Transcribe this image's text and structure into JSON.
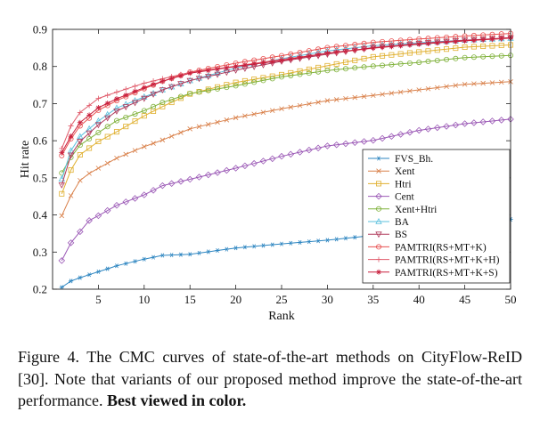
{
  "chart_data": {
    "type": "line",
    "xlabel": "Rank",
    "ylabel": "Hit rate",
    "xlim": [
      0,
      50
    ],
    "ylim": [
      0.2,
      0.9
    ],
    "xticks": [
      5,
      10,
      15,
      20,
      25,
      30,
      35,
      40,
      45,
      50
    ],
    "yticks": [
      0.2,
      0.3,
      0.4,
      0.5,
      0.6,
      0.7,
      0.8,
      0.9
    ],
    "ytick_labels": [
      "0.2",
      "0.3",
      "0.4",
      "0.5",
      "0.6",
      "0.7",
      "0.8",
      "0.9"
    ],
    "legend_position": "lower-right",
    "series": [
      {
        "name": "FVS_Bh.",
        "color": "#2e86c1",
        "marker": "asterisk",
        "anchors": [
          [
            1,
            0.205
          ],
          [
            2,
            0.222
          ],
          [
            3,
            0.231
          ],
          [
            5,
            0.247
          ],
          [
            7,
            0.263
          ],
          [
            10,
            0.281
          ],
          [
            12,
            0.291
          ],
          [
            15,
            0.294
          ],
          [
            20,
            0.311
          ],
          [
            25,
            0.322
          ],
          [
            30,
            0.332
          ],
          [
            35,
            0.345
          ],
          [
            40,
            0.357
          ],
          [
            45,
            0.371
          ],
          [
            50,
            0.388
          ]
        ]
      },
      {
        "name": "Xent",
        "color": "#d9804a",
        "marker": "x",
        "anchors": [
          [
            1,
            0.398
          ],
          [
            2,
            0.452
          ],
          [
            3,
            0.493
          ],
          [
            4,
            0.512
          ],
          [
            5,
            0.526
          ],
          [
            7,
            0.553
          ],
          [
            10,
            0.584
          ],
          [
            12,
            0.602
          ],
          [
            15,
            0.632
          ],
          [
            20,
            0.662
          ],
          [
            25,
            0.686
          ],
          [
            30,
            0.708
          ],
          [
            35,
            0.722
          ],
          [
            40,
            0.737
          ],
          [
            45,
            0.752
          ],
          [
            50,
            0.759
          ]
        ]
      },
      {
        "name": "Htri",
        "color": "#e0b030",
        "marker": "square",
        "anchors": [
          [
            1,
            0.457
          ],
          [
            2,
            0.521
          ],
          [
            3,
            0.562
          ],
          [
            5,
            0.598
          ],
          [
            7,
            0.624
          ],
          [
            10,
            0.667
          ],
          [
            12,
            0.692
          ],
          [
            15,
            0.726
          ],
          [
            20,
            0.757
          ],
          [
            25,
            0.778
          ],
          [
            30,
            0.802
          ],
          [
            35,
            0.826
          ],
          [
            40,
            0.839
          ],
          [
            45,
            0.852
          ],
          [
            50,
            0.858
          ]
        ]
      },
      {
        "name": "Cent",
        "color": "#9b59b6",
        "marker": "diamond",
        "anchors": [
          [
            1,
            0.277
          ],
          [
            2,
            0.325
          ],
          [
            3,
            0.355
          ],
          [
            4,
            0.385
          ],
          [
            5,
            0.398
          ],
          [
            7,
            0.426
          ],
          [
            10,
            0.454
          ],
          [
            12,
            0.479
          ],
          [
            15,
            0.496
          ],
          [
            20,
            0.526
          ],
          [
            25,
            0.558
          ],
          [
            30,
            0.586
          ],
          [
            35,
            0.601
          ],
          [
            40,
            0.628
          ],
          [
            45,
            0.646
          ],
          [
            50,
            0.658
          ]
        ]
      },
      {
        "name": "Xent+Htri",
        "color": "#7fb13a",
        "marker": "circle",
        "anchors": [
          [
            1,
            0.513
          ],
          [
            2,
            0.555
          ],
          [
            3,
            0.588
          ],
          [
            5,
            0.622
          ],
          [
            7,
            0.654
          ],
          [
            10,
            0.681
          ],
          [
            12,
            0.703
          ],
          [
            15,
            0.727
          ],
          [
            20,
            0.748
          ],
          [
            25,
            0.772
          ],
          [
            30,
            0.789
          ],
          [
            35,
            0.801
          ],
          [
            40,
            0.811
          ],
          [
            45,
            0.824
          ],
          [
            50,
            0.83
          ]
        ]
      },
      {
        "name": "BA",
        "color": "#5bc0de",
        "marker": "triangle-up",
        "anchors": [
          [
            1,
            0.497
          ],
          [
            2,
            0.573
          ],
          [
            3,
            0.611
          ],
          [
            5,
            0.653
          ],
          [
            7,
            0.688
          ],
          [
            10,
            0.718
          ],
          [
            12,
            0.737
          ],
          [
            15,
            0.762
          ],
          [
            20,
            0.796
          ],
          [
            25,
            0.821
          ],
          [
            30,
            0.842
          ],
          [
            35,
            0.856
          ],
          [
            40,
            0.864
          ],
          [
            45,
            0.871
          ],
          [
            50,
            0.876
          ]
        ]
      },
      {
        "name": "BS",
        "color": "#b03a5b",
        "marker": "triangle-down",
        "anchors": [
          [
            1,
            0.481
          ],
          [
            2,
            0.561
          ],
          [
            3,
            0.598
          ],
          [
            5,
            0.643
          ],
          [
            7,
            0.68
          ],
          [
            10,
            0.714
          ],
          [
            12,
            0.737
          ],
          [
            15,
            0.762
          ],
          [
            20,
            0.79
          ],
          [
            25,
            0.814
          ],
          [
            30,
            0.833
          ],
          [
            35,
            0.851
          ],
          [
            40,
            0.862
          ],
          [
            45,
            0.871
          ],
          [
            50,
            0.877
          ]
        ]
      },
      {
        "name": "PAMTRI(RS+MT+K)",
        "color": "#e85050",
        "marker": "circle",
        "anchors": [
          [
            1,
            0.56
          ],
          [
            2,
            0.605
          ],
          [
            3,
            0.64
          ],
          [
            5,
            0.682
          ],
          [
            7,
            0.708
          ],
          [
            10,
            0.74
          ],
          [
            12,
            0.76
          ],
          [
            15,
            0.785
          ],
          [
            20,
            0.809
          ],
          [
            25,
            0.829
          ],
          [
            30,
            0.851
          ],
          [
            35,
            0.865
          ],
          [
            40,
            0.874
          ],
          [
            45,
            0.882
          ],
          [
            50,
            0.889
          ]
        ]
      },
      {
        "name": "PAMTRI(RS+MT+K+H)",
        "color": "#e05a6a",
        "marker": "plus",
        "anchors": [
          [
            1,
            0.579
          ],
          [
            2,
            0.64
          ],
          [
            3,
            0.676
          ],
          [
            5,
            0.714
          ],
          [
            7,
            0.731
          ],
          [
            10,
            0.755
          ],
          [
            12,
            0.767
          ],
          [
            15,
            0.784
          ],
          [
            20,
            0.801
          ],
          [
            25,
            0.819
          ],
          [
            30,
            0.835
          ],
          [
            35,
            0.849
          ],
          [
            40,
            0.861
          ],
          [
            45,
            0.869
          ],
          [
            50,
            0.876
          ]
        ]
      },
      {
        "name": "PAMTRI(RS+MT+K+S)",
        "color": "#c81e3c",
        "marker": "star",
        "anchors": [
          [
            1,
            0.568
          ],
          [
            2,
            0.612
          ],
          [
            3,
            0.649
          ],
          [
            5,
            0.689
          ],
          [
            7,
            0.713
          ],
          [
            10,
            0.743
          ],
          [
            12,
            0.76
          ],
          [
            15,
            0.782
          ],
          [
            20,
            0.8
          ],
          [
            25,
            0.816
          ],
          [
            30,
            0.836
          ],
          [
            35,
            0.85
          ],
          [
            40,
            0.86
          ],
          [
            45,
            0.869
          ],
          [
            50,
            0.878
          ]
        ]
      }
    ]
  },
  "caption": {
    "text": "Figure 4. The CMC curves of state-of-the-art methods on CityFlow-ReID [30]. Note that variants of our proposed method improve the state-of-the-art performance.",
    "emphasis": "Best viewed in color."
  }
}
